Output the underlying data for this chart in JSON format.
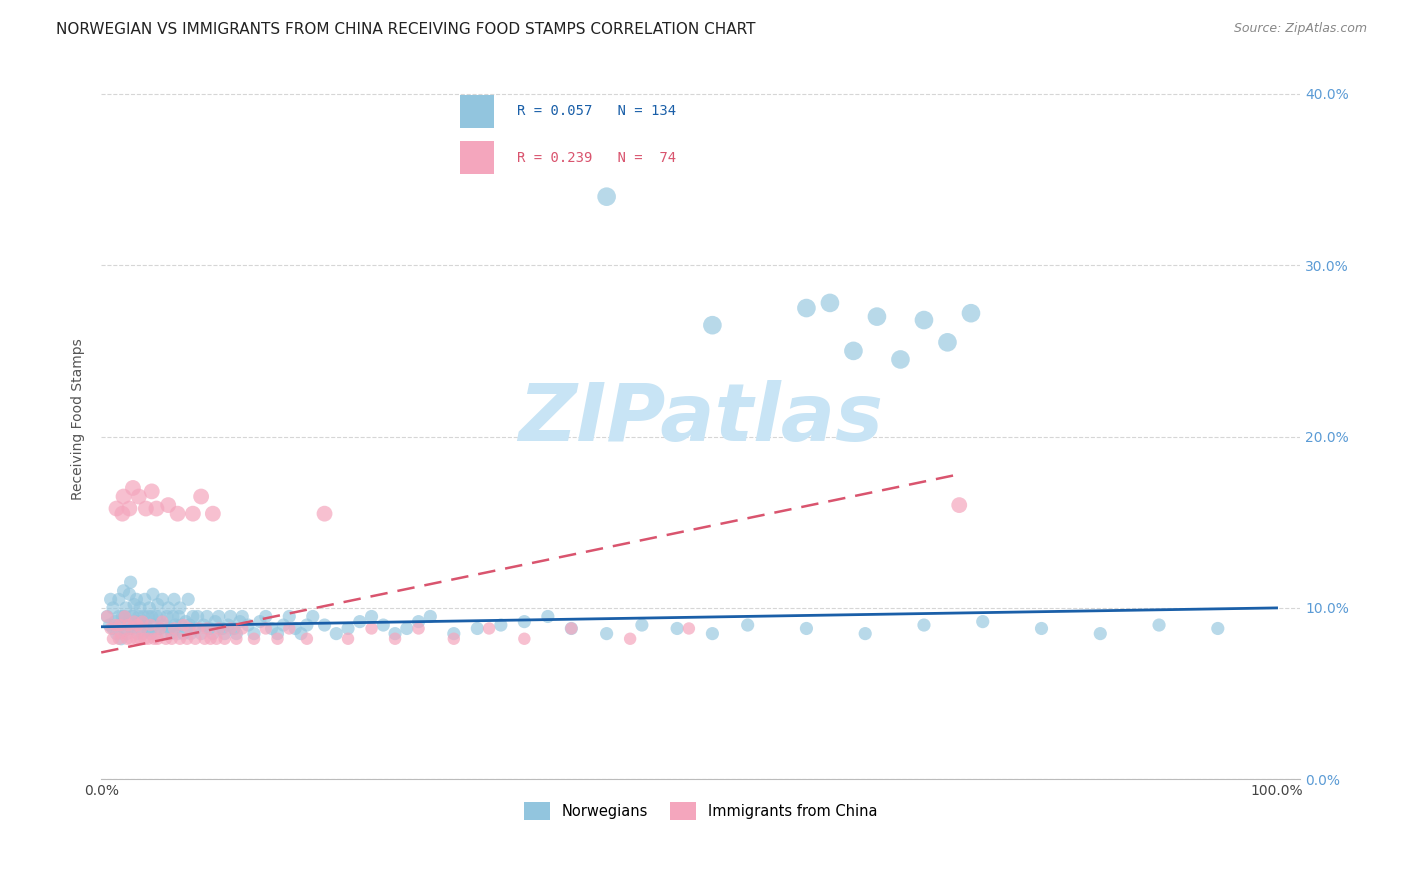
{
  "title": "NORWEGIAN VS IMMIGRANTS FROM CHINA RECEIVING FOOD STAMPS CORRELATION CHART",
  "source": "Source: ZipAtlas.com",
  "ylabel": "Receiving Food Stamps",
  "ytick_vals": [
    0.0,
    0.1,
    0.2,
    0.3,
    0.4
  ],
  "ytick_labels": [
    "0.0%",
    "10.0%",
    "20.0%",
    "30.0%",
    "40.0%"
  ],
  "xtick_vals": [
    0.0,
    1.0
  ],
  "xtick_labels": [
    "0.0%",
    "100.0%"
  ],
  "ylim": [
    0.0,
    0.42
  ],
  "xlim": [
    0.0,
    1.02
  ],
  "norwegian_R": 0.057,
  "norwegian_N": 134,
  "china_R": 0.239,
  "china_N": 74,
  "blue_color": "#92c5de",
  "pink_color": "#f4a6bd",
  "blue_line_color": "#1a5fa8",
  "pink_line_color": "#d9546e",
  "nor_line_x0": 0.0,
  "nor_line_y0": 0.089,
  "nor_line_x1": 1.0,
  "nor_line_y1": 0.1,
  "chi_line_x0": 0.0,
  "chi_line_y0": 0.074,
  "chi_line_x1": 0.73,
  "chi_line_y1": 0.178,
  "watermark_text": "ZIPatlas",
  "watermark_color": "#c8e4f5",
  "grid_color": "#cccccc",
  "background_color": "#ffffff",
  "title_fontsize": 11,
  "label_fontsize": 10,
  "tick_fontsize": 10,
  "source_fontsize": 9,
  "nor_x": [
    0.005,
    0.007,
    0.008,
    0.01,
    0.01,
    0.012,
    0.013,
    0.015,
    0.015,
    0.016,
    0.017,
    0.018,
    0.019,
    0.02,
    0.02,
    0.021,
    0.022,
    0.023,
    0.024,
    0.025,
    0.025,
    0.026,
    0.027,
    0.028,
    0.03,
    0.03,
    0.031,
    0.032,
    0.033,
    0.034,
    0.035,
    0.036,
    0.037,
    0.038,
    0.04,
    0.04,
    0.041,
    0.042,
    0.043,
    0.044,
    0.045,
    0.046,
    0.047,
    0.048,
    0.05,
    0.05,
    0.052,
    0.053,
    0.055,
    0.056,
    0.057,
    0.058,
    0.06,
    0.061,
    0.062,
    0.063,
    0.065,
    0.066,
    0.067,
    0.068,
    0.07,
    0.072,
    0.074,
    0.075,
    0.076,
    0.078,
    0.08,
    0.082,
    0.085,
    0.087,
    0.09,
    0.092,
    0.095,
    0.097,
    0.1,
    0.103,
    0.105,
    0.108,
    0.11,
    0.113,
    0.115,
    0.118,
    0.12,
    0.125,
    0.13,
    0.135,
    0.14,
    0.145,
    0.15,
    0.155,
    0.16,
    0.165,
    0.17,
    0.175,
    0.18,
    0.19,
    0.2,
    0.21,
    0.22,
    0.23,
    0.24,
    0.25,
    0.26,
    0.27,
    0.28,
    0.3,
    0.32,
    0.34,
    0.36,
    0.38,
    0.4,
    0.43,
    0.46,
    0.49,
    0.52,
    0.55,
    0.6,
    0.65,
    0.7,
    0.75,
    0.8,
    0.85,
    0.9,
    0.95,
    0.43,
    0.52,
    0.6,
    0.62,
    0.64,
    0.66,
    0.68,
    0.7,
    0.72,
    0.74
  ],
  "nor_y": [
    0.095,
    0.09,
    0.105,
    0.088,
    0.1,
    0.092,
    0.085,
    0.095,
    0.105,
    0.09,
    0.082,
    0.095,
    0.11,
    0.087,
    0.095,
    0.1,
    0.085,
    0.092,
    0.108,
    0.095,
    0.115,
    0.088,
    0.095,
    0.102,
    0.09,
    0.105,
    0.085,
    0.095,
    0.1,
    0.092,
    0.085,
    0.095,
    0.105,
    0.09,
    0.087,
    0.095,
    0.1,
    0.085,
    0.095,
    0.108,
    0.09,
    0.085,
    0.095,
    0.102,
    0.088,
    0.095,
    0.105,
    0.09,
    0.085,
    0.095,
    0.1,
    0.088,
    0.085,
    0.095,
    0.105,
    0.09,
    0.085,
    0.095,
    0.1,
    0.09,
    0.085,
    0.092,
    0.105,
    0.09,
    0.085,
    0.095,
    0.088,
    0.095,
    0.085,
    0.09,
    0.095,
    0.088,
    0.085,
    0.092,
    0.095,
    0.088,
    0.085,
    0.09,
    0.095,
    0.088,
    0.085,
    0.092,
    0.095,
    0.09,
    0.085,
    0.092,
    0.095,
    0.088,
    0.085,
    0.09,
    0.095,
    0.088,
    0.085,
    0.09,
    0.095,
    0.09,
    0.085,
    0.088,
    0.092,
    0.095,
    0.09,
    0.085,
    0.088,
    0.092,
    0.095,
    0.085,
    0.088,
    0.09,
    0.092,
    0.095,
    0.088,
    0.085,
    0.09,
    0.088,
    0.085,
    0.09,
    0.088,
    0.085,
    0.09,
    0.092,
    0.088,
    0.085,
    0.09,
    0.088,
    0.34,
    0.265,
    0.275,
    0.278,
    0.25,
    0.27,
    0.245,
    0.268,
    0.255,
    0.272
  ],
  "chi_x": [
    0.005,
    0.008,
    0.01,
    0.012,
    0.013,
    0.015,
    0.016,
    0.017,
    0.018,
    0.019,
    0.02,
    0.022,
    0.023,
    0.024,
    0.025,
    0.026,
    0.027,
    0.028,
    0.03,
    0.031,
    0.032,
    0.033,
    0.034,
    0.035,
    0.037,
    0.038,
    0.04,
    0.042,
    0.043,
    0.045,
    0.047,
    0.048,
    0.05,
    0.052,
    0.055,
    0.057,
    0.06,
    0.062,
    0.065,
    0.067,
    0.07,
    0.073,
    0.075,
    0.078,
    0.08,
    0.083,
    0.085,
    0.088,
    0.09,
    0.093,
    0.095,
    0.098,
    0.1,
    0.105,
    0.11,
    0.115,
    0.12,
    0.13,
    0.14,
    0.15,
    0.16,
    0.175,
    0.19,
    0.21,
    0.23,
    0.25,
    0.27,
    0.3,
    0.33,
    0.36,
    0.4,
    0.45,
    0.5,
    0.73
  ],
  "chi_y": [
    0.095,
    0.088,
    0.082,
    0.09,
    0.158,
    0.082,
    0.09,
    0.085,
    0.155,
    0.165,
    0.095,
    0.082,
    0.09,
    0.158,
    0.082,
    0.088,
    0.17,
    0.092,
    0.082,
    0.09,
    0.165,
    0.082,
    0.088,
    0.092,
    0.082,
    0.158,
    0.082,
    0.09,
    0.168,
    0.082,
    0.158,
    0.082,
    0.088,
    0.092,
    0.082,
    0.16,
    0.082,
    0.088,
    0.155,
    0.082,
    0.09,
    0.082,
    0.088,
    0.155,
    0.082,
    0.088,
    0.165,
    0.082,
    0.088,
    0.082,
    0.155,
    0.082,
    0.088,
    0.082,
    0.088,
    0.082,
    0.088,
    0.082,
    0.088,
    0.082,
    0.088,
    0.082,
    0.155,
    0.082,
    0.088,
    0.082,
    0.088,
    0.082,
    0.088,
    0.082,
    0.088,
    0.082,
    0.088,
    0.16
  ]
}
